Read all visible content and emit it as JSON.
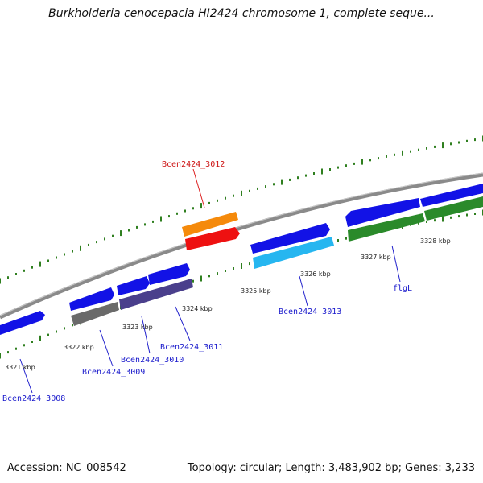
{
  "title": "Burkholderia cenocepacia HI2424 chromosome 1, complete seque...",
  "footer": {
    "accession": "Accession: NC_008542",
    "summary": "Topology: circular; Length: 3,483,902 bp; Genes: 3,233"
  },
  "colors": {
    "background": "#ffffff",
    "backbone": "#8a8a8a",
    "tick": "#2f7f1f",
    "gene_blue": "#1212e6",
    "gene_label_blue": "#1a1acc",
    "gene_label_red": "#cc1111",
    "leader_line_blue": "#2222cc",
    "leader_line_red": "#dd2222"
  },
  "map": {
    "kbp_ticks": [
      "3321 kbp",
      "3322 kbp",
      "3323 kbp",
      "3324 kbp",
      "3325 kbp",
      "3326 kbp",
      "3327 kbp",
      "3328 kbp"
    ],
    "gene_labels": [
      {
        "text": "Bcen2424_3008",
        "color": "blue"
      },
      {
        "text": "Bcen2424_3009",
        "color": "blue"
      },
      {
        "text": "Bcen2424_3010",
        "color": "blue"
      },
      {
        "text": "Bcen2424_3011",
        "color": "blue"
      },
      {
        "text": "Bcen2424_3012",
        "color": "red"
      },
      {
        "text": "Bcen2424_3013",
        "color": "blue"
      },
      {
        "text": "flgL",
        "color": "blue"
      }
    ],
    "features": [
      {
        "name": "outer-gene-1",
        "ring": "outer",
        "color": "#1212e6",
        "strand": "reverse"
      },
      {
        "name": "outer-gene-2",
        "ring": "outer",
        "color": "#1212e6",
        "strand": "forward"
      },
      {
        "name": "outer-gene-3",
        "ring": "outer",
        "color": "#1212e6",
        "strand": "forward"
      },
      {
        "name": "outer-gene-4",
        "ring": "outer",
        "color": "#1212e6",
        "strand": "forward"
      },
      {
        "name": "outer-gene-5",
        "ring": "outer",
        "color": "#1212e6",
        "strand": "forward"
      },
      {
        "name": "outer-gene-6",
        "ring": "outer",
        "color": "#1212e6",
        "strand": "reverse"
      },
      {
        "name": "outer-gene-7",
        "ring": "outer",
        "color": "#1212e6",
        "strand": "forward"
      },
      {
        "name": "outer-gene-8",
        "ring": "outer",
        "color": "#1212e6",
        "strand": "forward"
      },
      {
        "name": "outer-gene-9",
        "ring": "outer",
        "color": "#f58a0b",
        "strand": "none"
      },
      {
        "name": "outer-gene-10",
        "ring": "outer",
        "color": "#ee1111",
        "strand": "forward"
      },
      {
        "name": "inner-gene-1",
        "ring": "inner",
        "color": "#6a6a6a",
        "strand": "none"
      },
      {
        "name": "inner-gene-2",
        "ring": "inner",
        "color": "#4a3f8c",
        "strand": "none"
      },
      {
        "name": "inner-gene-3",
        "ring": "inner",
        "color": "#26b6f0",
        "strand": "none"
      },
      {
        "name": "inner-gene-4",
        "ring": "inner",
        "color": "#2a8a2a",
        "strand": "none"
      },
      {
        "name": "inner-gene-5",
        "ring": "inner",
        "color": "#2a8a2a",
        "strand": "none"
      }
    ]
  }
}
